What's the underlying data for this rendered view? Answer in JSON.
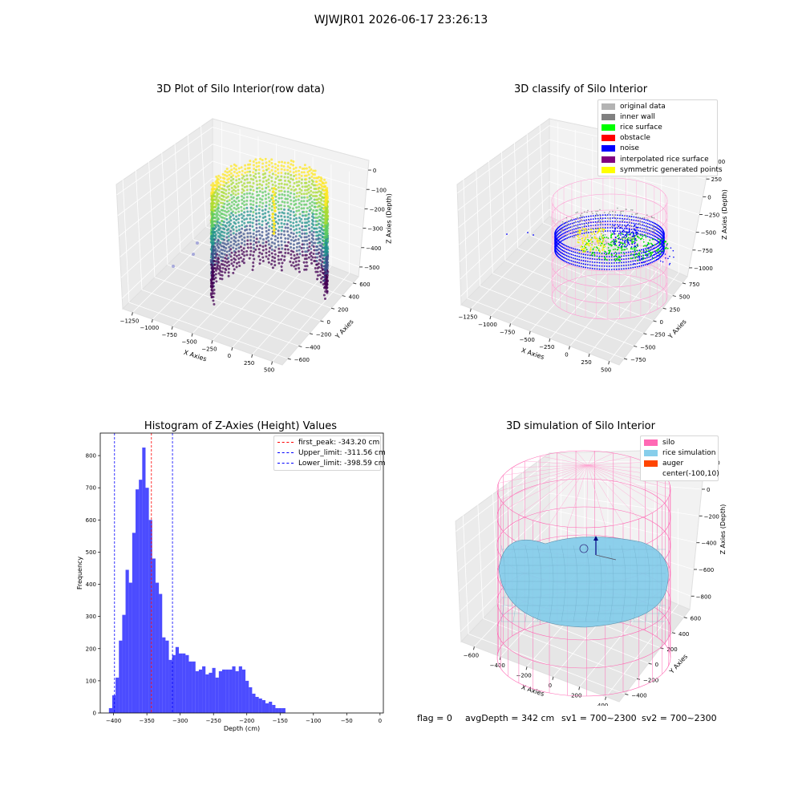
{
  "figure": {
    "suptitle": "WJWJR01 2026-06-17 23:26:13"
  },
  "panel_raw": {
    "title": "3D Plot of Silo Interior(row data)",
    "xlabel": "X Axies",
    "ylabel": "Y Axies",
    "zlabel": "Z Axies (Depth)",
    "xticks": [
      "−1250",
      "−1000",
      "−750",
      "−500",
      "−250",
      "0",
      "250",
      "500"
    ],
    "yticks": [
      "600",
      "400",
      "200",
      "0",
      "−200",
      "−400",
      "−600"
    ],
    "zticks": [
      "0",
      "−100",
      "−200",
      "−300",
      "−400",
      "−500"
    ]
  },
  "panel_classify": {
    "title": "3D classify of Silo Interior",
    "xlabel": "X Axies",
    "ylabel": "Y Axies",
    "zlabel": "Z Axies (Depth)",
    "xticks": [
      "−1250",
      "−1000",
      "−750",
      "−500",
      "−250",
      "0",
      "250",
      "500"
    ],
    "yticks": [
      "750",
      "500",
      "250",
      "0",
      "−250",
      "−500",
      "−750"
    ],
    "zticks": [
      "500",
      "250",
      "0",
      "−250",
      "−500",
      "−750",
      "−1000"
    ],
    "legend": [
      {
        "label": "original data",
        "color": "#b3b3b3"
      },
      {
        "label": "inner wall",
        "color": "#808080"
      },
      {
        "label": "rice surface",
        "color": "#00ff00"
      },
      {
        "label": "obstacle",
        "color": "#ff0000"
      },
      {
        "label": "noise",
        "color": "#0000ff"
      },
      {
        "label": "interpolated rice surface",
        "color": "#800080"
      },
      {
        "label": "symmetric generated points",
        "color": "#ffff00"
      }
    ]
  },
  "panel_sim": {
    "title": "3D simulation of Silo Interior",
    "xlabel": "X Axies",
    "ylabel": "Y Axies",
    "zlabel": "Z Axies (Depth)",
    "xticks": [
      "−600",
      "−400",
      "−200",
      "0",
      "200",
      "400"
    ],
    "yticks": [
      "600",
      "400",
      "200",
      "0",
      "−200",
      "−400"
    ],
    "zticks": [
      "200",
      "0",
      "−200",
      "−400",
      "−600",
      "−800"
    ],
    "legend": [
      {
        "label": "silo",
        "color": "#ff69b4"
      },
      {
        "label": "rice simulation",
        "color": "#87ceeb"
      },
      {
        "label": "auger",
        "color": "#ff4500"
      },
      {
        "label": "center(-100,10)",
        "color": ""
      }
    ]
  },
  "status": {
    "flag": "flag = 0",
    "avg": "avgDepth = 342 cm",
    "sv1": "sv1 = 700~2300",
    "sv2": "sv2 = 700~2300"
  },
  "chart_data": {
    "type": "bar",
    "title": "Histogram of Z-Axies (Height) Values",
    "xlabel": "Depth (cm)",
    "ylabel": "Frequency",
    "xlim": [
      -420,
      5
    ],
    "ylim": [
      0,
      870
    ],
    "xticks": [
      -400,
      -350,
      -300,
      -250,
      -200,
      -150,
      -100,
      -50,
      0
    ],
    "yticks": [
      0,
      100,
      200,
      300,
      400,
      500,
      600,
      700,
      800
    ],
    "bin_start": -407,
    "bin_width": 5,
    "values": [
      15,
      55,
      110,
      225,
      305,
      445,
      405,
      560,
      695,
      725,
      825,
      700,
      600,
      480,
      405,
      370,
      235,
      225,
      165,
      180,
      205,
      185,
      185,
      180,
      160,
      160,
      130,
      135,
      145,
      120,
      125,
      140,
      110,
      130,
      135,
      135,
      135,
      145,
      130,
      145,
      135,
      100,
      80,
      60,
      50,
      45,
      40,
      30,
      35,
      25,
      15,
      15,
      15
    ],
    "color": "#0000ff",
    "vlines": [
      {
        "x": -343.2,
        "color": "#ff0000",
        "label": "first_peak: -343.20 cm"
      },
      {
        "x": -311.56,
        "color": "#0000ff",
        "label": "Upper_limit: -311.56 cm"
      },
      {
        "x": -398.59,
        "color": "#0000ff",
        "label": "Lower_limit: -398.59 cm"
      }
    ],
    "legend_position": "upper right"
  }
}
